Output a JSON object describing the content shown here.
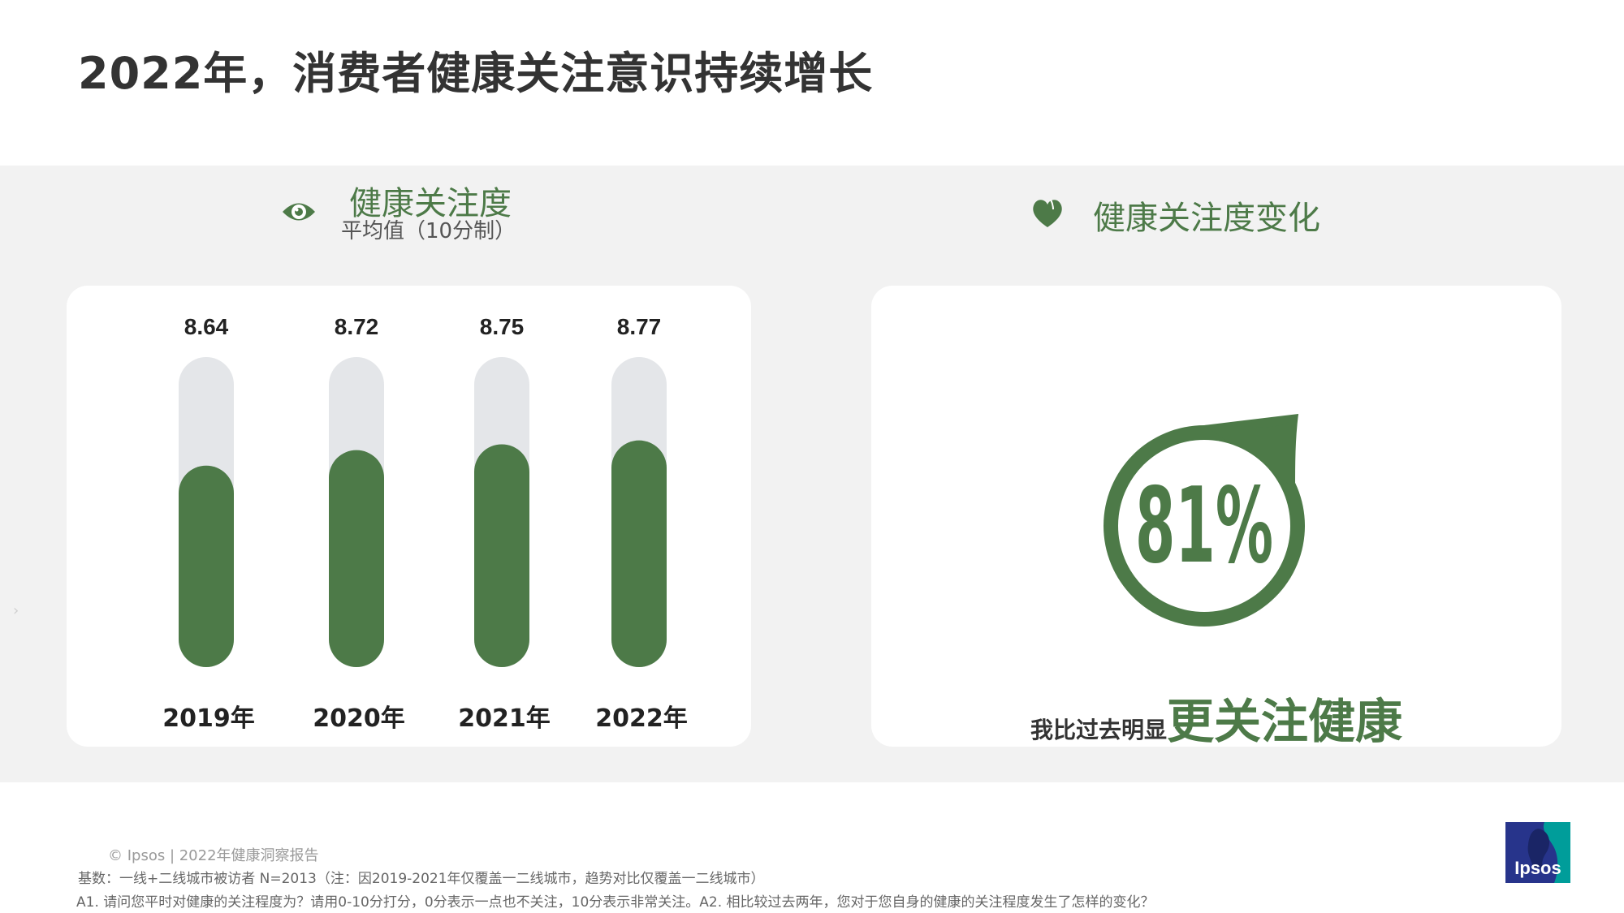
{
  "title": "2022年，消费者健康关注意识持续增长",
  "left_section": {
    "heading": "健康关注度",
    "subheading": "平均值（10分制）",
    "icon": "eye-icon"
  },
  "right_section": {
    "heading": "健康关注度变化",
    "icon": "heart-icon",
    "percent_label": "81%",
    "caption_prefix": "我比过去明显",
    "caption_emphasis": "更关注健康"
  },
  "chart_data": [
    {
      "type": "bar",
      "categories": [
        "2019年",
        "2020年",
        "2021年",
        "2022年"
      ],
      "values": [
        8.64,
        8.72,
        8.75,
        8.77
      ],
      "value_labels": [
        "8.64",
        "8.72",
        "8.75",
        "8.77"
      ],
      "ylim": [
        0,
        10
      ],
      "grid": false,
      "colors": {
        "bar": "#4d7a48",
        "track": "#e4e6e9"
      }
    },
    {
      "type": "pie",
      "categories": [
        "我比过去明显更关注健康"
      ],
      "values": [
        81
      ],
      "value_label": "81%",
      "colors": {
        "ring": "#4d7a48"
      }
    }
  ],
  "footer": {
    "copyright": "© Ipsos | 2022年健康洞察报告",
    "base_note": "基数：一线+二线城市被访者  N=2013（注：因2019-2021年仅覆盖一二线城市，趋势对比仅覆盖一二线城市）",
    "question_note": "A1. 请问您平时对健康的关注程度为？请用0-10分打分，0分表示一点也不关注，10分表示非常关注。A2. 相比较过去两年，您对于您自身的健康的关注程度发生了怎样的变化？",
    "side_mark": "›"
  },
  "logo": {
    "text": "Ipsos",
    "colors": {
      "navy": "#27348b",
      "teal": "#009d9a"
    }
  },
  "colors": {
    "accent": "#4d7a48",
    "band": "#f2f2f2"
  }
}
